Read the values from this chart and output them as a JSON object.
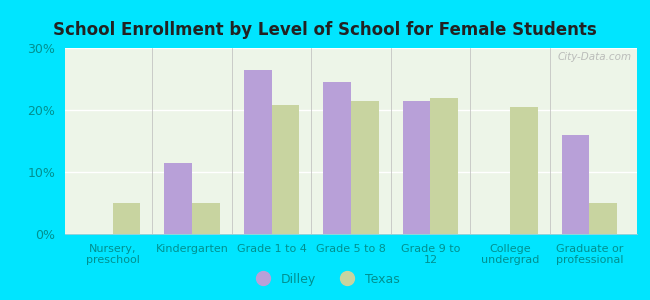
{
  "title": "School Enrollment by Level of School for Female Students",
  "categories": [
    "Nursery,\npreschool",
    "Kindergarten",
    "Grade 1 to 4",
    "Grade 5 to 8",
    "Grade 9 to\n12",
    "College\nundergrad",
    "Graduate or\nprofessional"
  ],
  "dilley": [
    0,
    11.5,
    26.5,
    24.5,
    21.5,
    0,
    16.0
  ],
  "texas": [
    5.0,
    5.0,
    20.8,
    21.5,
    22.0,
    20.5,
    5.0
  ],
  "dilley_color": "#b8a0d8",
  "texas_color": "#c8d4a0",
  "background_outer": "#00e5ff",
  "background_inner": "#edf5e8",
  "ylim": [
    0,
    30
  ],
  "yticks": [
    0,
    10,
    20,
    30
  ],
  "ytick_labels": [
    "0%",
    "10%",
    "20%",
    "30%"
  ],
  "bar_width": 0.35,
  "legend_dilley": "Dilley",
  "legend_texas": "Texas",
  "watermark": "City-Data.com",
  "tick_label_color": "#009090",
  "title_color": "#222222"
}
